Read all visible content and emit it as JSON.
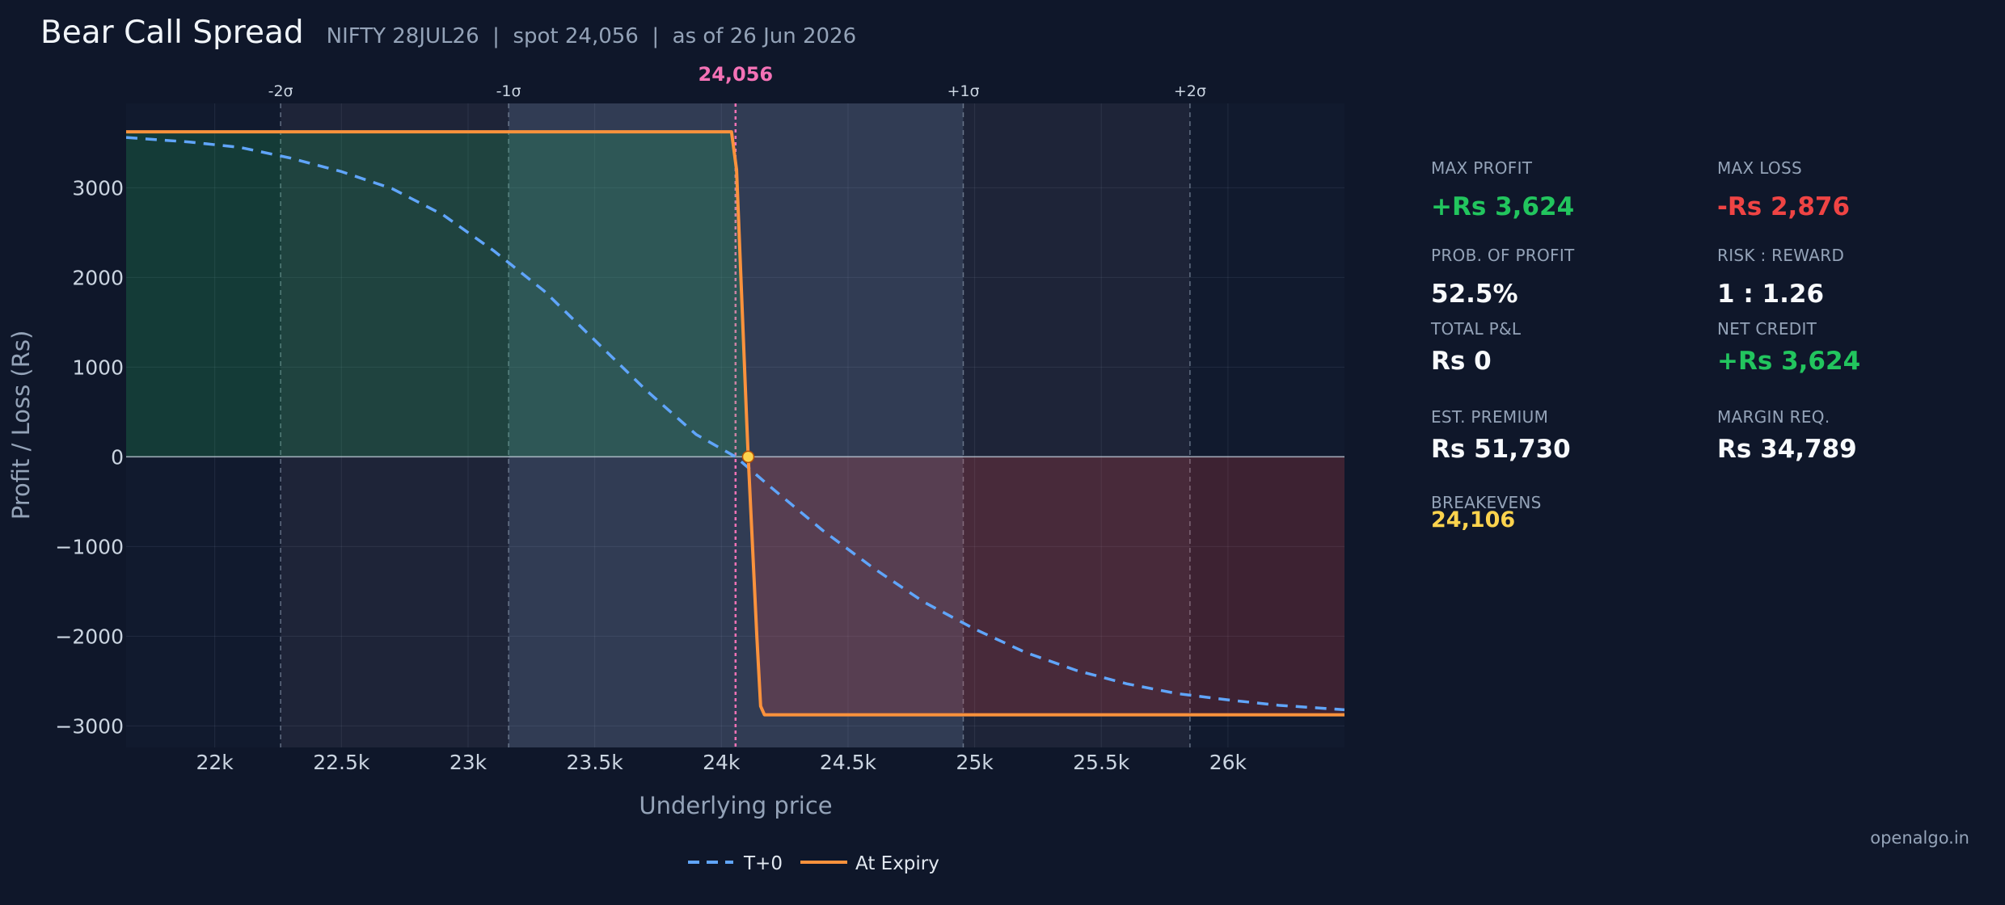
{
  "header": {
    "title": "Bear Call Spread",
    "subtitle": "NIFTY 28JUL26  |  spot 24,056  |  as of 26 Jun 2026"
  },
  "chart_data": {
    "type": "line",
    "xlabel": "Underlying price",
    "ylabel": "Profit / Loss (Rs)",
    "xlim": [
      21650,
      26460
    ],
    "ylim": [
      -3240,
      3940
    ],
    "x_ticks": [
      22000,
      22500,
      23000,
      23500,
      24000,
      24500,
      25000,
      25500,
      26000
    ],
    "x_tick_labels": [
      "22k",
      "22.5k",
      "23k",
      "23.5k",
      "24k",
      "24.5k",
      "25k",
      "25.5k",
      "26k"
    ],
    "y_ticks": [
      3000,
      2000,
      1000,
      0,
      -1000,
      -2000,
      -3000
    ],
    "y_tick_labels": [
      "3000",
      "2000",
      "1000",
      "0",
      "−1000",
      "−2000",
      "−3000"
    ],
    "spot": 24056,
    "spot_label": "24,056",
    "sigma_lines": [
      {
        "label": "-2σ",
        "x": 22260
      },
      {
        "label": "-1σ",
        "x": 23160
      },
      {
        "label": "+1σ",
        "x": 24955
      },
      {
        "label": "+2σ",
        "x": 25850
      }
    ],
    "breakeven_marker": {
      "x": 24106,
      "y": 0
    },
    "series": [
      {
        "name": "T+0",
        "style": "dashed",
        "color": "#60a5fa",
        "points": [
          [
            21650,
            3560
          ],
          [
            21900,
            3510
          ],
          [
            22100,
            3450
          ],
          [
            22300,
            3330
          ],
          [
            22500,
            3180
          ],
          [
            22700,
            2990
          ],
          [
            22900,
            2700
          ],
          [
            23100,
            2300
          ],
          [
            23300,
            1850
          ],
          [
            23500,
            1300
          ],
          [
            23700,
            750
          ],
          [
            23900,
            250
          ],
          [
            24056,
            0
          ],
          [
            24200,
            -350
          ],
          [
            24400,
            -820
          ],
          [
            24600,
            -1240
          ],
          [
            24800,
            -1620
          ],
          [
            25000,
            -1920
          ],
          [
            25200,
            -2180
          ],
          [
            25400,
            -2380
          ],
          [
            25600,
            -2530
          ],
          [
            25800,
            -2640
          ],
          [
            26000,
            -2710
          ],
          [
            26200,
            -2770
          ],
          [
            26460,
            -2820
          ]
        ]
      },
      {
        "name": "At Expiry",
        "style": "solid",
        "color": "#fb923c",
        "points": [
          [
            21650,
            3624
          ],
          [
            24040,
            3624
          ],
          [
            24060,
            3200
          ],
          [
            24100,
            400
          ],
          [
            24106,
            0
          ],
          [
            24140,
            -2000
          ],
          [
            24155,
            -2780
          ],
          [
            24170,
            -2876
          ],
          [
            26460,
            -2876
          ]
        ]
      }
    ],
    "legend": {
      "placement": "bottom-center",
      "entries": [
        "T+0",
        "At Expiry"
      ]
    }
  },
  "stats": {
    "max_profit_label": "MAX PROFIT",
    "max_profit_value": "+Rs 3,624",
    "max_loss_label": "MAX LOSS",
    "max_loss_value": "-Rs 2,876",
    "pop_label": "PROB. OF PROFIT",
    "pop_value": "52.5%",
    "rr_label": "RISK : REWARD",
    "rr_value": "1 : 1.26",
    "total_pl_label": "TOTAL P&L",
    "total_pl_value": "Rs 0",
    "net_credit_label": "NET CREDIT",
    "net_credit_value": "+Rs 3,624",
    "premium_label": "EST. PREMIUM",
    "premium_value": "Rs 51,730",
    "margin_label": "MARGIN REQ.",
    "margin_value": "Rs 34,789",
    "breakevens_label": "BREAKEVENS",
    "breakevens_value": "24,106"
  },
  "watermark": "openalgo.in",
  "colors": {
    "background": "#0f172a",
    "profit_green": "#22c55e",
    "loss_red": "#ef4444",
    "t0_line": "#60a5fa",
    "expiry_line": "#fb923c",
    "spot_line": "#f472b6",
    "breakeven": "#fcd34d"
  }
}
